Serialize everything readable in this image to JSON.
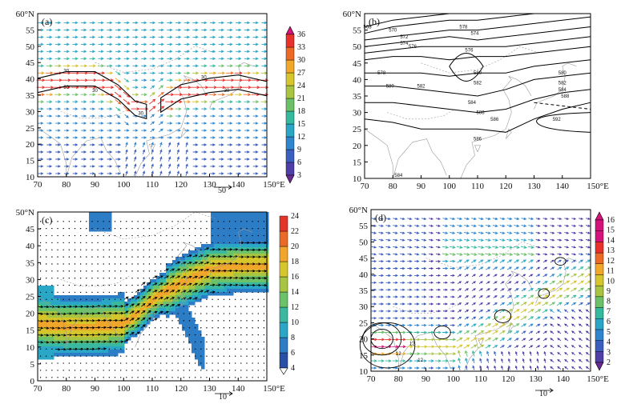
{
  "figure": {
    "panels": [
      {
        "id": "a",
        "label": "(a)",
        "x_ticks": [
          "70",
          "80",
          "90",
          "100",
          "110",
          "120",
          "130",
          "140",
          "150°E"
        ],
        "y_ticks": [
          "10",
          "15",
          "20",
          "25",
          "30",
          "35",
          "40",
          "45",
          "50",
          "55",
          "60°N"
        ],
        "colorbar": {
          "ticks": [
            "3",
            "6",
            "9",
            "12",
            "15",
            "18",
            "21",
            "24",
            "27",
            "30",
            "33",
            "36"
          ]
        },
        "ref_vector": "50",
        "contour_labels": [
          "30",
          "30",
          "30",
          "30",
          "30",
          "30"
        ]
      },
      {
        "id": "b",
        "label": "(b)",
        "x_ticks": [
          "70",
          "80",
          "90",
          "100",
          "110",
          "120",
          "130",
          "140",
          "150°E"
        ],
        "y_ticks": [
          "10",
          "15",
          "20",
          "25",
          "30",
          "35",
          "40",
          "45",
          "50",
          "55",
          "60°N"
        ],
        "contour_labels": [
          "568",
          "570",
          "572",
          "574",
          "576",
          "578",
          "574",
          "576",
          "578",
          "580",
          "582",
          "580",
          "582",
          "584",
          "580",
          "582",
          "584",
          "586",
          "588",
          "592",
          "586",
          "584",
          "588"
        ]
      },
      {
        "id": "c",
        "label": "(c)",
        "x_ticks": [
          "70",
          "80",
          "90",
          "100",
          "110",
          "120",
          "130",
          "140",
          "150°E"
        ],
        "y_ticks": [
          "0",
          "5",
          "10",
          "15",
          "20",
          "25",
          "30",
          "35",
          "40",
          "45",
          "50°N"
        ],
        "colorbar": {
          "ticks": [
            "4",
            "6",
            "8",
            "10",
            "12",
            "14",
            "16",
            "18",
            "20",
            "22",
            "24"
          ]
        },
        "ref_vector": "10"
      },
      {
        "id": "d",
        "label": "(d)",
        "x_ticks": [
          "70",
          "80",
          "90",
          "100",
          "110",
          "120",
          "130",
          "140",
          "150°E"
        ],
        "y_ticks": [
          "10",
          "15",
          "20",
          "25",
          "30",
          "35",
          "40",
          "45",
          "50",
          "55",
          "60°N"
        ],
        "colorbar": {
          "ticks": [
            "2",
            "3",
            "4",
            "5",
            "6",
            "7",
            "8",
            "9",
            "10",
            "11",
            "12",
            "13",
            "14",
            "15",
            "16"
          ]
        },
        "ref_vector": "10",
        "contour_labels": [
          "12",
          "12",
          "12"
        ]
      }
    ]
  },
  "chart_data": [
    {
      "type": "heatmap",
      "panel": "a",
      "x": [
        70,
        150
      ],
      "y": [
        10,
        60
      ],
      "colorbar_range": [
        3,
        36
      ],
      "jet_isotach": 30,
      "jet_axis": [
        [
          70,
          38
        ],
        [
          80,
          40
        ],
        [
          90,
          40
        ],
        [
          98,
          36
        ],
        [
          104,
          31
        ],
        [
          108,
          30
        ],
        [
          113,
          32
        ],
        [
          120,
          36
        ],
        [
          130,
          38
        ],
        [
          140,
          39
        ],
        [
          150,
          37
        ]
      ]
    },
    {
      "type": "line",
      "panel": "b",
      "x": [
        70,
        150
      ],
      "y": [
        10,
        60
      ],
      "contours": [
        {
          "level": 568,
          "points": [
            [
              70,
              56
            ],
            [
              80,
              58
            ],
            [
              90,
              59
            ],
            [
              100,
              60
            ]
          ]
        },
        {
          "level": 570,
          "points": [
            [
              70,
              54
            ],
            [
              80,
              56
            ],
            [
              90,
              57
            ],
            [
              100,
              58
            ],
            [
              110,
              58
            ],
            [
              120,
              59
            ],
            [
              130,
              60
            ]
          ]
        },
        {
          "level": 572,
          "points": [
            [
              70,
              52
            ],
            [
              80,
              53
            ],
            [
              90,
              54
            ],
            [
              100,
              55
            ],
            [
              110,
              55
            ],
            [
              120,
              56
            ],
            [
              130,
              57
            ],
            [
              140,
              58
            ],
            [
              150,
              59
            ]
          ]
        },
        {
          "level": 574,
          "points": [
            [
              70,
              50
            ],
            [
              80,
              51
            ],
            [
              90,
              52
            ],
            [
              100,
              53
            ],
            [
              110,
              52
            ],
            [
              120,
              53
            ],
            [
              130,
              54
            ],
            [
              140,
              55
            ],
            [
              150,
              56
            ]
          ]
        },
        {
          "level": 576,
          "points": [
            [
              70,
              48
            ],
            [
              80,
              49
            ],
            [
              90,
              50
            ],
            [
              100,
              50
            ],
            [
              110,
              50
            ],
            [
              120,
              50
            ],
            [
              130,
              51
            ],
            [
              140,
              52
            ],
            [
              150,
              53
            ]
          ]
        },
        {
          "level": 578,
          "points": [
            [
              70,
              46
            ],
            [
              80,
              47
            ],
            [
              90,
              47
            ],
            [
              100,
              46
            ],
            [
              110,
              47
            ],
            [
              120,
              47
            ],
            [
              130,
              48
            ],
            [
              140,
              49
            ],
            [
              150,
              50
            ]
          ]
        },
        {
          "level": 580,
          "points": [
            [
              70,
              42
            ],
            [
              80,
              42
            ],
            [
              90,
              42
            ],
            [
              100,
              41
            ],
            [
              110,
              42
            ],
            [
              120,
              42
            ],
            [
              130,
              44
            ],
            [
              140,
              45
            ],
            [
              150,
              46
            ]
          ]
        },
        {
          "level": 582,
          "points": [
            [
              70,
              38
            ],
            [
              80,
              38
            ],
            [
              90,
              37
            ],
            [
              100,
              36
            ],
            [
              110,
              35
            ],
            [
              120,
              37
            ],
            [
              130,
              40
            ],
            [
              140,
              41
            ],
            [
              150,
              42
            ]
          ]
        },
        {
          "level": 584,
          "points": [
            [
              70,
              33
            ],
            [
              80,
              33
            ],
            [
              90,
              32
            ],
            [
              100,
              31
            ],
            [
              110,
              30
            ],
            [
              120,
              31
            ],
            [
              130,
              34
            ],
            [
              140,
              36
            ],
            [
              150,
              37
            ]
          ]
        },
        {
          "level": 586,
          "points": [
            [
              70,
              28
            ],
            [
              80,
              27
            ],
            [
              90,
              25
            ],
            [
              100,
              25
            ],
            [
              110,
              25
            ],
            [
              120,
              24
            ],
            [
              130,
              28
            ],
            [
              140,
              31
            ],
            [
              150,
              33
            ]
          ]
        },
        {
          "level": 588,
          "points": [
            [
              130,
              33
            ],
            [
              140,
              32
            ],
            [
              150,
              31
            ]
          ]
        },
        {
          "level": 592,
          "points": [
            [
              131,
              27
            ],
            [
              140,
              29
            ],
            [
              150,
              28
            ]
          ]
        }
      ]
    },
    {
      "type": "heatmap",
      "panel": "c",
      "x": [
        70,
        150
      ],
      "y": [
        0,
        50
      ],
      "colorbar_range": [
        4,
        24
      ],
      "moisture_axis": [
        [
          70,
          17
        ],
        [
          80,
          16
        ],
        [
          90,
          16
        ],
        [
          100,
          17
        ],
        [
          105,
          20
        ],
        [
          110,
          24
        ],
        [
          120,
          29
        ],
        [
          130,
          33
        ],
        [
          140,
          34
        ],
        [
          150,
          34
        ]
      ]
    },
    {
      "type": "heatmap",
      "panel": "d",
      "x": [
        70,
        150
      ],
      "y": [
        10,
        60
      ],
      "colorbar_range": [
        2,
        16
      ],
      "flow_axis": [
        [
          90,
          18
        ],
        [
          100,
          17
        ],
        [
          110,
          20
        ],
        [
          120,
          26
        ],
        [
          130,
          31
        ],
        [
          140,
          36
        ],
        [
          150,
          39
        ]
      ]
    }
  ],
  "colors": {
    "wind_scale": [
      "#6a2c91",
      "#4f3fa6",
      "#3b5fbf",
      "#2f86cf",
      "#2aa6c7",
      "#35b99f",
      "#6cc168",
      "#a8c440",
      "#d7c52d",
      "#f0a72a",
      "#ec6a26",
      "#e8312a",
      "#d4147a"
    ],
    "moisture_scale": [
      "#ffffff",
      "#2a4fa6",
      "#2d7cc6",
      "#2aa6c7",
      "#3bb9a0",
      "#6bc268",
      "#a7c540",
      "#d6c62c",
      "#f0a62b",
      "#ec6a27",
      "#e3342a"
    ],
    "land": "#ffffff",
    "contour": "#000000",
    "coast": "#9a9a9a"
  }
}
